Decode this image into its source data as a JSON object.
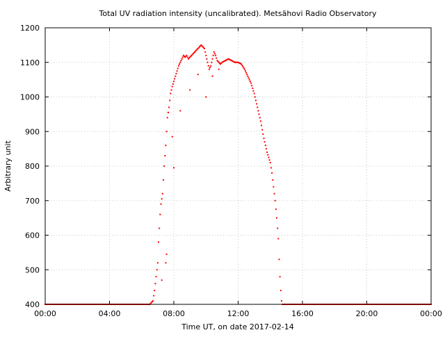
{
  "chart_data": {
    "type": "scatter",
    "title": "Total UV radiation intensity (uncalibrated). Metsähovi Radio Observatory",
    "xlabel": "Time UT, on date 2017-02-14",
    "ylabel": "Arbitrary unit",
    "xlim": [
      0,
      24
    ],
    "ylim": [
      400,
      1200
    ],
    "grid": true,
    "x_ticks": [
      0,
      4,
      8,
      12,
      16,
      20,
      24
    ],
    "x_tick_labels": [
      "00:00",
      "04:00",
      "08:00",
      "12:00",
      "16:00",
      "20:00",
      "00:00"
    ],
    "y_ticks": [
      400,
      500,
      600,
      700,
      800,
      900,
      1000,
      1100,
      1200
    ],
    "y_tick_labels": [
      "400",
      "500",
      "600",
      "700",
      "800",
      "900",
      "1000",
      "1100",
      "1200"
    ],
    "marker_color": "#ff0000",
    "series": [
      {
        "x": [
          0,
          1,
          2,
          3,
          4,
          5,
          6,
          6.5,
          6.7,
          6.8,
          6.85,
          6.9,
          7.0,
          7.05,
          7.1,
          7.15,
          7.2,
          7.3,
          7.35,
          7.4,
          7.45,
          7.5,
          7.55,
          7.6,
          7.7,
          7.8,
          7.9,
          8.0,
          8.1,
          8.2,
          8.3,
          8.4,
          8.5,
          8.6,
          8.7,
          8.8,
          8.9,
          9.0,
          9.1,
          9.2,
          9.3,
          9.4,
          9.5,
          9.6,
          9.7,
          9.8,
          9.9,
          10.0,
          10.1,
          10.2,
          10.3,
          10.4,
          10.5,
          10.6,
          10.7,
          10.8,
          10.9,
          11.0,
          11.2,
          11.4,
          11.6,
          11.8,
          12.0,
          12.2,
          12.4,
          12.6,
          12.8,
          13.0,
          13.2,
          13.4,
          13.6,
          13.8,
          14.0,
          14.1,
          14.2,
          14.3,
          14.4,
          14.5,
          14.55,
          14.6,
          14.65,
          14.7,
          14.75,
          14.8,
          15.0,
          16.0,
          18.0,
          20.0,
          22.0,
          24.0
        ],
        "y": [
          400,
          400,
          400,
          400,
          400,
          400,
          400,
          400,
          410,
          440,
          460,
          480,
          520,
          580,
          620,
          660,
          690,
          720,
          760,
          800,
          830,
          860,
          900,
          940,
          970,
          1010,
          1030,
          1045,
          1060,
          1075,
          1090,
          1100,
          1110,
          1120,
          1115,
          1120,
          1110,
          1115,
          1120,
          1125,
          1130,
          1135,
          1140,
          1145,
          1150,
          1145,
          1140,
          1120,
          1100,
          1080,
          1090,
          1110,
          1130,
          1120,
          1105,
          1100,
          1095,
          1100,
          1105,
          1110,
          1105,
          1100,
          1100,
          1095,
          1080,
          1060,
          1040,
          1010,
          970,
          930,
          880,
          840,
          810,
          780,
          740,
          700,
          650,
          590,
          530,
          480,
          440,
          410,
          400,
          400,
          400,
          400,
          400,
          400,
          400,
          400
        ]
      }
    ],
    "outliers": {
      "x": [
        7.5,
        7.55,
        7.25,
        8.4,
        9.0,
        9.5,
        10.0,
        10.4,
        10.8,
        7.65,
        7.9,
        8.0
      ],
      "y": [
        520,
        545,
        470,
        960,
        1020,
        1065,
        1000,
        1060,
        1080,
        955,
        885,
        795
      ]
    }
  }
}
